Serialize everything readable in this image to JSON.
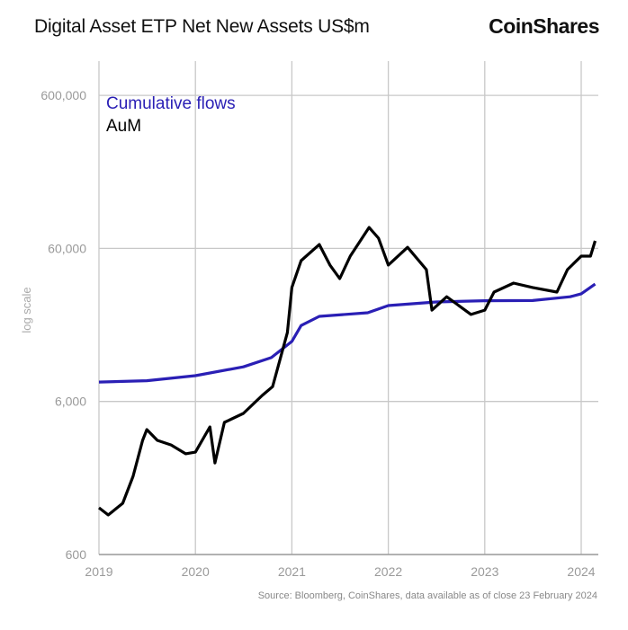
{
  "header": {
    "title": "Digital Asset ETP Net New Assets US$m",
    "logo_text": "CoinShares"
  },
  "footer": {
    "source": "Source: Bloomberg, CoinShares, data available as of close 23 February 2024"
  },
  "chart_data": {
    "type": "line",
    "title": "Digital Asset ETP Net New Assets US$m",
    "xlabel": "",
    "ylabel": "log scale",
    "y_scale": "log",
    "ylim": [
      600,
      1000000
    ],
    "xlim": [
      "2019-01-01",
      "2024-02-23"
    ],
    "x_ticks": [
      "2019",
      "2020",
      "2021",
      "2022",
      "2023",
      "2024"
    ],
    "y_ticks": [
      {
        "value": 600,
        "label": "600"
      },
      {
        "value": 6000,
        "label": "6,000"
      },
      {
        "value": 60000,
        "label": "60,000"
      },
      {
        "value": 600000,
        "label": "600,000"
      }
    ],
    "grid": true,
    "legend_position": "top-left",
    "series": [
      {
        "name": "Cumulative flows",
        "color": "#2a1fb5",
        "points": [
          [
            "2019-01-01",
            8040
          ],
          [
            "2019-07-01",
            8200
          ],
          [
            "2020-01-01",
            8850
          ],
          [
            "2020-07-01",
            10100
          ],
          [
            "2020-10-15",
            11600
          ],
          [
            "2021-01-01",
            14800
          ],
          [
            "2021-02-05",
            18800
          ],
          [
            "2021-04-15",
            21600
          ],
          [
            "2021-10-15",
            22800
          ],
          [
            "2022-01-01",
            25400
          ],
          [
            "2022-07-01",
            26800
          ],
          [
            "2023-01-01",
            27300
          ],
          [
            "2023-07-01",
            27400
          ],
          [
            "2023-11-20",
            29000
          ],
          [
            "2024-01-01",
            30300
          ],
          [
            "2024-02-23",
            35100
          ]
        ]
      },
      {
        "name": "AuM",
        "color": "#000000",
        "points": [
          [
            "2019-01-01",
            1212
          ],
          [
            "2019-02-05",
            1088
          ],
          [
            "2019-04-01",
            1296
          ],
          [
            "2019-05-10",
            1946
          ],
          [
            "2019-06-15",
            3343
          ],
          [
            "2019-07-01",
            3930
          ],
          [
            "2019-08-10",
            3343
          ],
          [
            "2019-10-01",
            3120
          ],
          [
            "2019-11-25",
            2730
          ],
          [
            "2020-01-01",
            2800
          ],
          [
            "2020-02-25",
            4090
          ],
          [
            "2020-03-15",
            2380
          ],
          [
            "2020-04-20",
            4380
          ],
          [
            "2020-07-01",
            5010
          ],
          [
            "2020-09-10",
            6560
          ],
          [
            "2020-10-20",
            7500
          ],
          [
            "2020-12-15",
            16900
          ],
          [
            "2021-01-01",
            33300
          ],
          [
            "2021-02-05",
            49900
          ],
          [
            "2021-04-15",
            63600
          ],
          [
            "2021-05-25",
            46700
          ],
          [
            "2021-07-01",
            38100
          ],
          [
            "2021-08-10",
            53400
          ],
          [
            "2021-10-20",
            82200
          ],
          [
            "2021-11-25",
            70000
          ],
          [
            "2022-01-01",
            46700
          ],
          [
            "2022-03-15",
            61000
          ],
          [
            "2022-05-25",
            43600
          ],
          [
            "2022-06-15",
            23700
          ],
          [
            "2022-08-10",
            29000
          ],
          [
            "2022-11-10",
            22200
          ],
          [
            "2023-01-01",
            23700
          ],
          [
            "2023-02-05",
            31100
          ],
          [
            "2023-04-20",
            35600
          ],
          [
            "2023-07-01",
            33300
          ],
          [
            "2023-10-01",
            31100
          ],
          [
            "2023-11-10",
            43600
          ],
          [
            "2024-01-01",
            53400
          ],
          [
            "2024-02-05",
            53400
          ],
          [
            "2024-02-23",
            67200
          ]
        ]
      }
    ]
  }
}
